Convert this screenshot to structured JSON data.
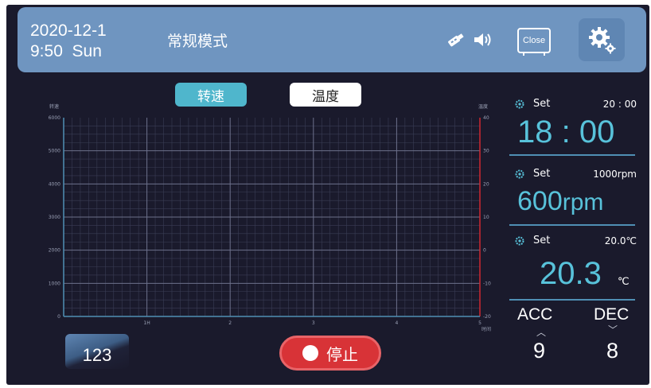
{
  "header": {
    "date": "2020-12-1",
    "time": "9:50",
    "weekday": "Sun",
    "mode": "常规模式",
    "close_label": "Close"
  },
  "tabs": [
    {
      "label": "转速",
      "active": true
    },
    {
      "label": "温度",
      "active": false
    }
  ],
  "chart": {
    "left_axis_title": "转速",
    "right_axis_title": "温度",
    "left_ticks": [
      "6000",
      "5000",
      "4000",
      "3000",
      "2000",
      "1000",
      "0"
    ],
    "right_ticks": [
      "40",
      "30",
      "20",
      "10",
      "0",
      "-10",
      "-20"
    ],
    "x_ticks": [
      "1H",
      "2",
      "3",
      "4",
      "5"
    ],
    "x_unit": "时间"
  },
  "chart_data": {
    "type": "line",
    "title": "",
    "x": [
      0,
      1,
      2,
      3,
      4,
      5
    ],
    "xlabel": "时间",
    "ylabel": "转速",
    "ylabel_right": "温度",
    "ylim": [
      0,
      6000
    ],
    "ylim_right": [
      -20,
      40
    ],
    "grid": true,
    "series": []
  },
  "panel": {
    "time": {
      "set_label": "Set",
      "target": "20 : 00",
      "current": "18 : 00"
    },
    "speed": {
      "set_label": "Set",
      "target": "1000rpm",
      "current": "600",
      "unit": "rpm"
    },
    "temp": {
      "set_label": "Set",
      "target": "20.0℃",
      "current": "20.3",
      "unit": "℃"
    },
    "acc": {
      "label": "ACC",
      "value": "9"
    },
    "dec": {
      "label": "DEC",
      "value": "8"
    }
  },
  "bottom": {
    "keypad_label": "123",
    "stop_label": "停止"
  },
  "colors": {
    "background": "#1a1a2c",
    "header": "#6f95c0",
    "accent": "#58c2da",
    "stop": "#d83337",
    "chart_left_axis": "#4f8fb4",
    "chart_right_axis": "#d02830"
  },
  "icons": [
    "usb-icon",
    "speaker-icon",
    "close-icon",
    "gear-icon"
  ]
}
